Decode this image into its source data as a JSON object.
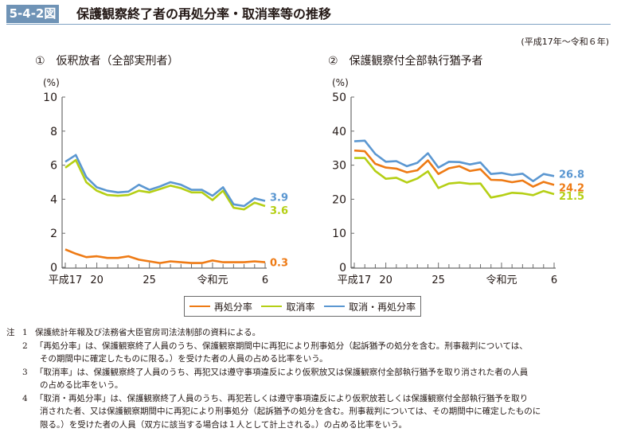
{
  "figure": {
    "number": "5-4-2図",
    "title": "保護観察終了者の再処分率・取消率等の推移",
    "period": "(平成17年～令和６年)"
  },
  "legend": [
    {
      "label": "再処分率",
      "color": "#ee7a14"
    },
    {
      "label": "取消率",
      "color": "#b5cf15"
    },
    {
      "label": "取消・再処分率",
      "color": "#5b97d1"
    }
  ],
  "chart_data": [
    {
      "type": "line",
      "title": "①　仮釈放者（全部実刑者）",
      "ylabel": "(%)",
      "ylim": [
        0,
        10
      ],
      "yticks": [
        0,
        2,
        4,
        6,
        8,
        10
      ],
      "x": [
        "平成17",
        "18",
        "19",
        "20",
        "21",
        "22",
        "23",
        "24",
        "25",
        "26",
        "27",
        "28",
        "29",
        "30",
        "令和元",
        "2",
        "3",
        "4",
        "5",
        "6"
      ],
      "xtick_labels": [
        {
          "index": 0,
          "label": "平成17"
        },
        {
          "index": 3,
          "label": "20"
        },
        {
          "index": 8,
          "label": "25"
        },
        {
          "index": 14,
          "label": "令和元"
        },
        {
          "index": 19,
          "label": "6"
        }
      ],
      "series": [
        {
          "name": "再処分率",
          "color": "#ee7a14",
          "values": [
            1.05,
            0.8,
            0.6,
            0.65,
            0.55,
            0.55,
            0.65,
            0.45,
            0.35,
            0.25,
            0.35,
            0.3,
            0.25,
            0.25,
            0.4,
            0.3,
            0.3,
            0.3,
            0.35,
            0.3
          ],
          "end_label": "0.3"
        },
        {
          "name": "取消率",
          "color": "#b5cf15",
          "values": [
            5.85,
            6.3,
            5.0,
            4.5,
            4.25,
            4.2,
            4.25,
            4.5,
            4.4,
            4.6,
            4.8,
            4.65,
            4.4,
            4.4,
            3.95,
            4.5,
            3.5,
            3.4,
            3.8,
            3.6
          ],
          "end_label": "3.6"
        },
        {
          "name": "取消・再処分率",
          "color": "#5b97d1",
          "values": [
            6.2,
            6.6,
            5.3,
            4.7,
            4.5,
            4.4,
            4.45,
            4.85,
            4.55,
            4.75,
            5.0,
            4.85,
            4.55,
            4.55,
            4.2,
            4.7,
            3.7,
            3.6,
            4.05,
            3.9
          ],
          "end_label": "3.9"
        }
      ]
    },
    {
      "type": "line",
      "title": "②　保護観察付全部執行猶予者",
      "ylabel": "(%)",
      "ylim": [
        0,
        50
      ],
      "yticks": [
        0,
        10,
        20,
        30,
        40,
        50
      ],
      "x": [
        "平成17",
        "18",
        "19",
        "20",
        "21",
        "22",
        "23",
        "24",
        "25",
        "26",
        "27",
        "28",
        "29",
        "30",
        "令和元",
        "2",
        "3",
        "4",
        "5",
        "6"
      ],
      "xtick_labels": [
        {
          "index": 0,
          "label": "平成17"
        },
        {
          "index": 3,
          "label": "20"
        },
        {
          "index": 8,
          "label": "25"
        },
        {
          "index": 14,
          "label": "令和元"
        },
        {
          "index": 19,
          "label": "6"
        }
      ],
      "series": [
        {
          "name": "再処分率",
          "color": "#ee7a14",
          "values": [
            34.3,
            34.1,
            30.4,
            29.3,
            29.0,
            27.9,
            28.5,
            31.4,
            27.4,
            29.1,
            29.7,
            28.3,
            28.8,
            25.7,
            25.6,
            25.0,
            25.5,
            23.7,
            25.1,
            24.2
          ],
          "end_label": "24.2"
        },
        {
          "name": "取消率",
          "color": "#b5cf15",
          "values": [
            32.1,
            32.1,
            28.3,
            26.0,
            26.3,
            24.9,
            26.1,
            28.2,
            23.3,
            24.6,
            24.9,
            24.5,
            24.6,
            20.5,
            21.1,
            21.9,
            21.7,
            21.2,
            22.4,
            21.5
          ],
          "end_label": "21.5"
        },
        {
          "name": "取消・再処分率",
          "color": "#5b97d1",
          "values": [
            37.0,
            37.2,
            33.3,
            31.0,
            31.2,
            29.7,
            30.7,
            33.5,
            29.3,
            31.0,
            30.9,
            30.2,
            30.8,
            27.4,
            27.7,
            27.1,
            27.5,
            25.3,
            27.4,
            26.8
          ],
          "end_label": "26.8"
        }
      ]
    }
  ],
  "notes": {
    "lead": "注",
    "items": [
      {
        "num": "1",
        "lines": [
          "保護統計年報及び法務省大臣官房司法法制部の資料による。"
        ]
      },
      {
        "num": "2",
        "lines": [
          "「再処分率」は、保護観察終了人員のうち、保護観察期間中に再犯により刑事処分（起訴猶予の処分を含む。刑事裁判については、",
          "その期間中に確定したものに限る。）を受けた者の人員の占める比率をいう。"
        ]
      },
      {
        "num": "3",
        "lines": [
          "「取消率」は、保護観察終了人員のうち、再犯又は遵守事項違反により仮釈放又は保護観察付全部執行猶予を取り消された者の人員",
          "の占める比率をいう。"
        ]
      },
      {
        "num": "4",
        "lines": [
          "「取消・再処分率」は、保護観察終了人員のうち、再犯若しくは遵守事項違反により仮釈放若しくは保護観察付全部執行猶予を取り",
          "消された者、又は保護観察期間中に再犯により刑事処分（起訴猶予の処分を含む。刑事裁判については、その期間中に確定したものに",
          "限る。）を受けた者の人員（双方に該当する場合は１人として計上される。）の占める比率をいう。"
        ]
      }
    ]
  }
}
